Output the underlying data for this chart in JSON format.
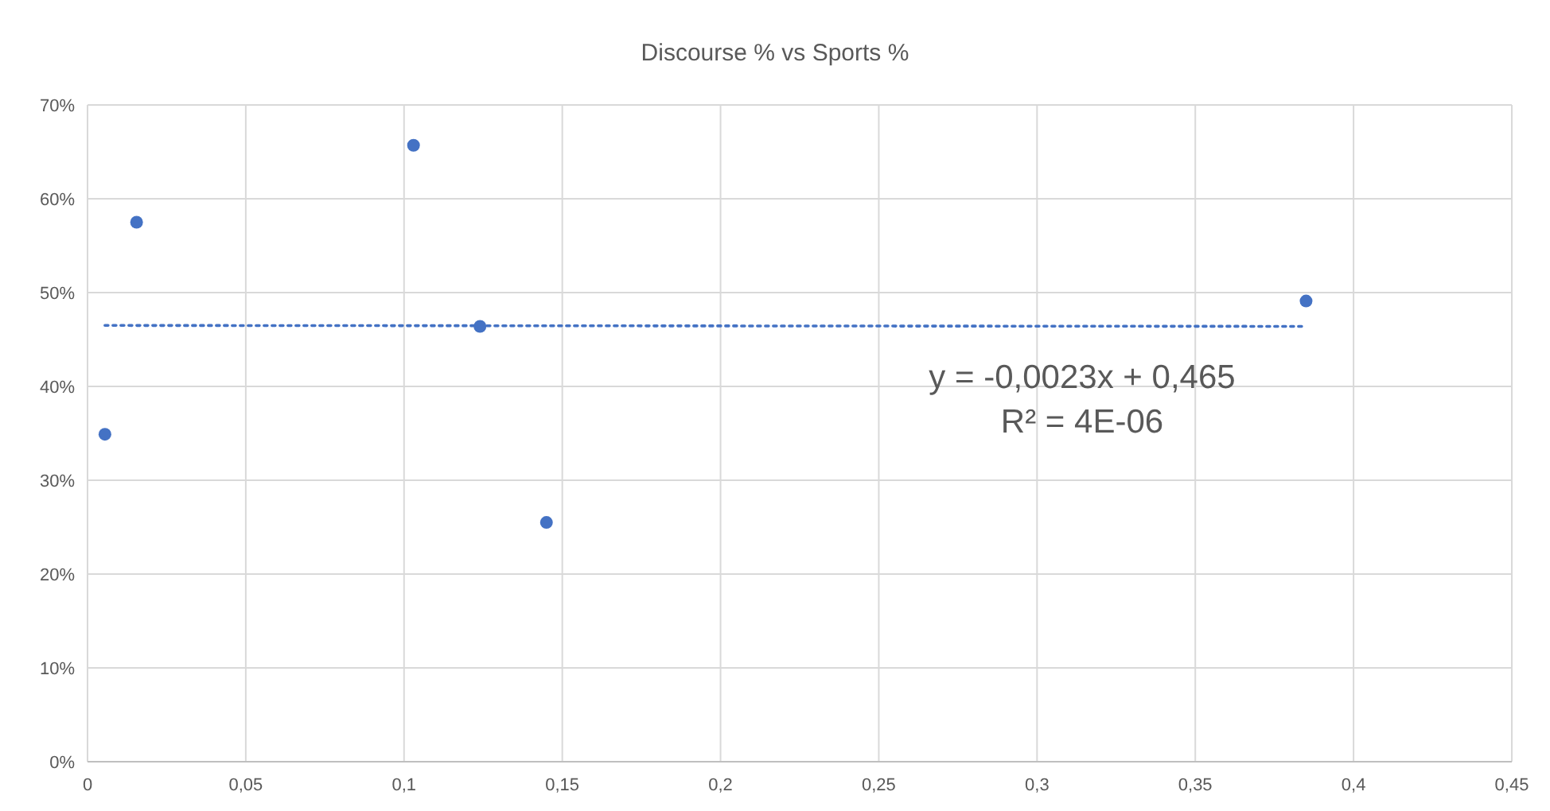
{
  "chart_data": {
    "type": "scatter",
    "title": "Discourse % vs Sports %",
    "xlim": [
      0,
      0.45
    ],
    "xticks": [
      0,
      {
        "value": 0.05,
        "label": "0,05"
      },
      {
        "value": 0.1,
        "label": "0,1"
      },
      {
        "value": 0.15,
        "label": "0,15"
      },
      {
        "value": 0.2,
        "label": "0,2"
      },
      {
        "value": 0.25,
        "label": "0,25"
      },
      {
        "value": 0.3,
        "label": "0,3"
      },
      {
        "value": 0.35,
        "label": "0,35"
      },
      {
        "value": 0.4,
        "label": "0,4"
      },
      {
        "value": 0.45,
        "label": "0,45"
      }
    ],
    "ylim": [
      0,
      0.7
    ],
    "yticks": [
      {
        "value": 0,
        "label": "0%"
      },
      {
        "value": 0.1,
        "label": "10%"
      },
      {
        "value": 0.2,
        "label": "20%"
      },
      {
        "value": 0.3,
        "label": "30%"
      },
      {
        "value": 0.4,
        "label": "40%"
      },
      {
        "value": 0.5,
        "label": "50%"
      },
      {
        "value": 0.6,
        "label": "60%"
      },
      {
        "value": 0.7,
        "label": "70%"
      }
    ],
    "grid": true,
    "marker": "circle",
    "series": [
      {
        "color": "#4472c4",
        "x": [
          0.0055,
          0.0155,
          0.103,
          0.124,
          0.145,
          0.385
        ],
        "values": [
          0.349,
          0.575,
          0.657,
          0.464,
          0.255,
          0.491
        ]
      },
      {
        "type": "line",
        "color": "#4472c4",
        "line_style": "dotted",
        "marker": "none",
        "x": [
          0.0055,
          0.385
        ],
        "values": [
          0.465,
          0.464
        ]
      }
    ],
    "annotations": [
      "y = -0,0023x + 0,465",
      "R² = 4E-06"
    ]
  }
}
